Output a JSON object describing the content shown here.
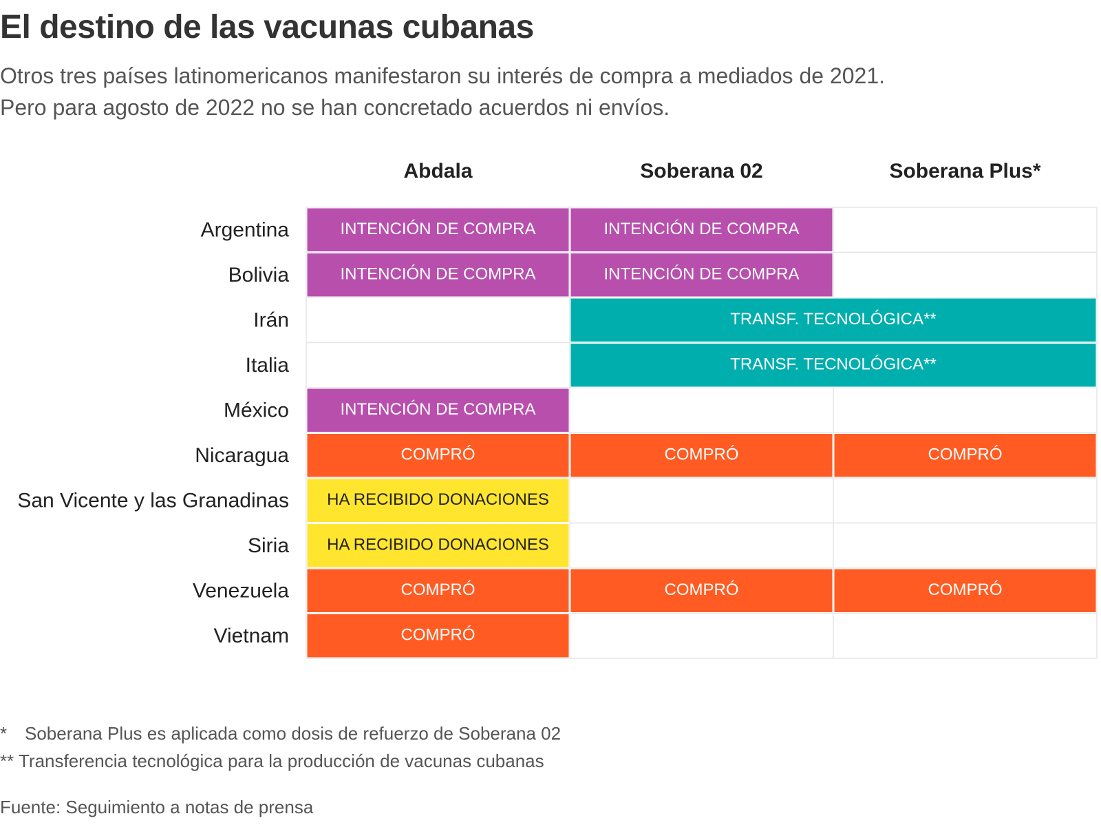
{
  "title": "El destino de las vacunas cubanas",
  "subtitle": [
    "Otros tres países latinomericanos manifestaron su interés de compra a mediados de 2021.",
    "Pero para agosto de 2022 no se han concretado acuerdos ni envíos."
  ],
  "colors": {
    "intencion": "#b84fad",
    "transf": "#00aeae",
    "compro": "#ff5b22",
    "donaciones": "#ffe52e",
    "grid": "#e6e6e6"
  },
  "chart_data": {
    "type": "table",
    "columns": [
      "Abdala",
      "Soberana 02",
      "Soberana Plus*"
    ],
    "rows": [
      {
        "country": "Argentina",
        "cells": [
          {
            "label": "INTENCIÓN DE COMPRA",
            "kind": "intencion",
            "span": 1
          },
          {
            "label": "INTENCIÓN DE COMPRA",
            "kind": "intencion",
            "span": 1
          },
          {
            "label": "",
            "kind": "empty",
            "span": 1
          }
        ]
      },
      {
        "country": "Bolivia",
        "cells": [
          {
            "label": "INTENCIÓN DE COMPRA",
            "kind": "intencion",
            "span": 1
          },
          {
            "label": "INTENCIÓN DE COMPRA",
            "kind": "intencion",
            "span": 1
          },
          {
            "label": "",
            "kind": "empty",
            "span": 1
          }
        ]
      },
      {
        "country": "Irán",
        "cells": [
          {
            "label": "",
            "kind": "empty",
            "span": 1
          },
          {
            "label": "TRANSF. TECNOLÓGICA**",
            "kind": "transf",
            "span": 2
          }
        ]
      },
      {
        "country": "Italia",
        "cells": [
          {
            "label": "",
            "kind": "empty",
            "span": 1
          },
          {
            "label": "TRANSF. TECNOLÓGICA**",
            "kind": "transf",
            "span": 2
          }
        ]
      },
      {
        "country": "México",
        "cells": [
          {
            "label": "INTENCIÓN DE COMPRA",
            "kind": "intencion",
            "span": 1
          },
          {
            "label": "",
            "kind": "empty",
            "span": 1
          },
          {
            "label": "",
            "kind": "empty",
            "span": 1
          }
        ]
      },
      {
        "country": "Nicaragua",
        "cells": [
          {
            "label": "COMPRÓ",
            "kind": "compro",
            "span": 1
          },
          {
            "label": "COMPRÓ",
            "kind": "compro",
            "span": 1
          },
          {
            "label": "COMPRÓ",
            "kind": "compro",
            "span": 1
          }
        ]
      },
      {
        "country": "San Vicente y las Granadinas",
        "cells": [
          {
            "label": "HA RECIBIDO DONACIONES",
            "kind": "donaciones",
            "span": 1
          },
          {
            "label": "",
            "kind": "empty",
            "span": 1
          },
          {
            "label": "",
            "kind": "empty",
            "span": 1
          }
        ]
      },
      {
        "country": "Siria",
        "cells": [
          {
            "label": "HA RECIBIDO DONACIONES",
            "kind": "donaciones",
            "span": 1
          },
          {
            "label": "",
            "kind": "empty",
            "span": 1
          },
          {
            "label": "",
            "kind": "empty",
            "span": 1
          }
        ]
      },
      {
        "country": "Venezuela",
        "cells": [
          {
            "label": "COMPRÓ",
            "kind": "compro",
            "span": 1
          },
          {
            "label": "COMPRÓ",
            "kind": "compro",
            "span": 1
          },
          {
            "label": "COMPRÓ",
            "kind": "compro",
            "span": 1
          }
        ]
      },
      {
        "country": "Vietnam",
        "cells": [
          {
            "label": "COMPRÓ",
            "kind": "compro",
            "span": 1
          },
          {
            "label": "",
            "kind": "empty",
            "span": 1
          },
          {
            "label": "",
            "kind": "empty",
            "span": 1
          }
        ]
      }
    ]
  },
  "notes": {
    "note1_mark": "*",
    "note1_text": "Soberana Plus es aplicada como dosis de refuerzo de Soberana 02",
    "note2": "** Transferencia tecnológica para la producción de vacunas cubanas",
    "source": "Fuente: Seguimiento a notas de prensa"
  }
}
